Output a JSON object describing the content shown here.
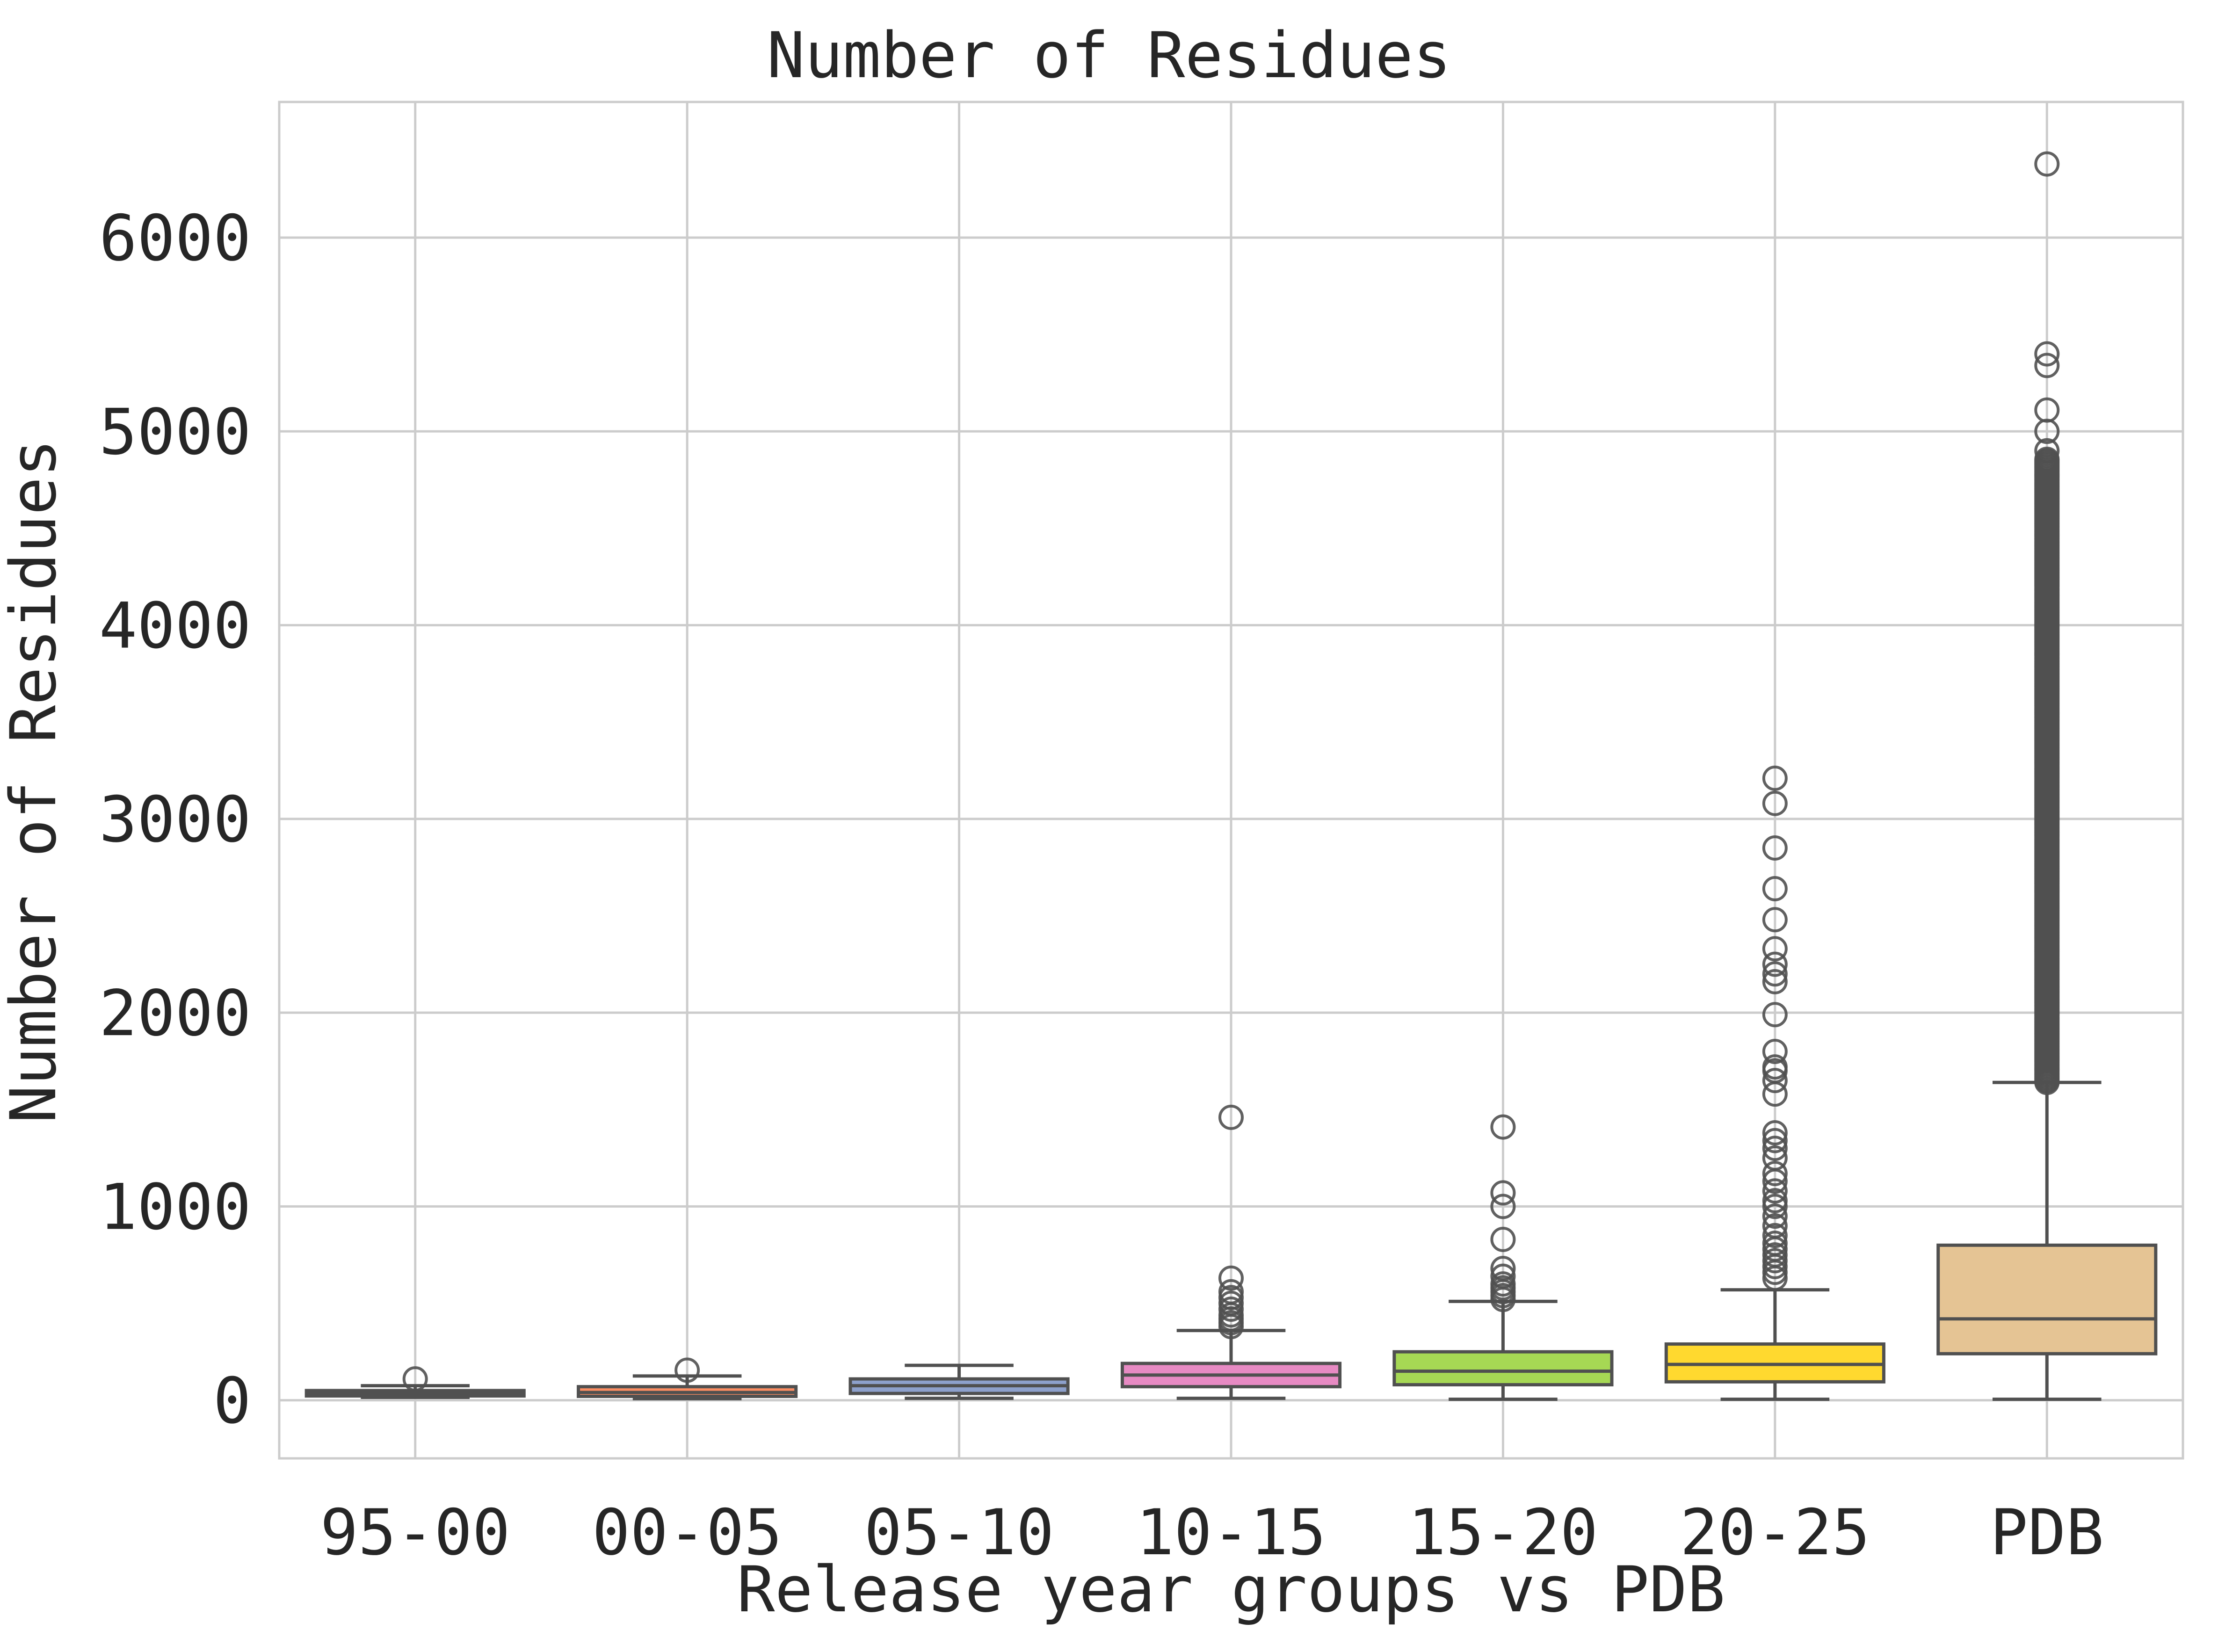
{
  "chart_data": {
    "type": "box",
    "title": "Number of Residues",
    "xlabel": "Release year groups vs PDB",
    "ylabel": "Number of Residues",
    "ylim": [
      -300,
      6700
    ],
    "yticks": [
      0,
      1000,
      2000,
      3000,
      4000,
      5000,
      6000
    ],
    "grid": true,
    "categories": [
      "95-00",
      "00-05",
      "05-10",
      "10-15",
      "15-20",
      "20-25",
      "PDB"
    ],
    "colors": [
      "#66c2a5",
      "#fc8d62",
      "#8da0cb",
      "#e78ac3",
      "#a6d854",
      "#ffd92f",
      "#e5c494"
    ],
    "boxes": [
      {
        "category": "95-00",
        "whisker_low": 15,
        "q1": 22,
        "median": 38,
        "q3": 50,
        "whisker_high": 75,
        "fliers": [
          110
        ]
      },
      {
        "category": "00-05",
        "whisker_low": 8,
        "q1": 20,
        "median": 40,
        "q3": 70,
        "whisker_high": 125,
        "fliers": [
          155
        ]
      },
      {
        "category": "05-10",
        "whisker_low": 10,
        "q1": 35,
        "median": 75,
        "q3": 110,
        "whisker_high": 180,
        "fliers": []
      },
      {
        "category": "10-15",
        "whisker_low": 10,
        "q1": 70,
        "median": 130,
        "q3": 190,
        "whisker_high": 360,
        "fliers": [
          380,
          400,
          420,
          440,
          470,
          500,
          530,
          560,
          630,
          1460
        ]
      },
      {
        "category": "15-20",
        "whisker_low": 5,
        "q1": 80,
        "median": 150,
        "q3": 250,
        "whisker_high": 510,
        "fliers": [
          520,
          540,
          560,
          580,
          600,
          640,
          680,
          830,
          1000,
          1070,
          1410
        ]
      },
      {
        "category": "20-25",
        "whisker_low": 5,
        "q1": 95,
        "median": 185,
        "q3": 290,
        "whisker_high": 570,
        "fliers": [
          630,
          660,
          690,
          720,
          750,
          780,
          810,
          850,
          900,
          950,
          1000,
          1030,
          1080,
          1130,
          1170,
          1250,
          1300,
          1340,
          1380,
          1580,
          1650,
          1700,
          1720,
          1800,
          1990,
          2160,
          2200,
          2250,
          2330,
          2480,
          2640,
          2850,
          3080,
          3210
        ]
      },
      {
        "category": "PDB",
        "whisker_low": 5,
        "q1": 240,
        "median": 420,
        "q3": 800,
        "whisker_high": 1640,
        "flier_range": [
          1640,
          4860
        ],
        "fliers": [
          4900,
          5000,
          5110,
          5340,
          5400,
          6380
        ]
      }
    ]
  }
}
